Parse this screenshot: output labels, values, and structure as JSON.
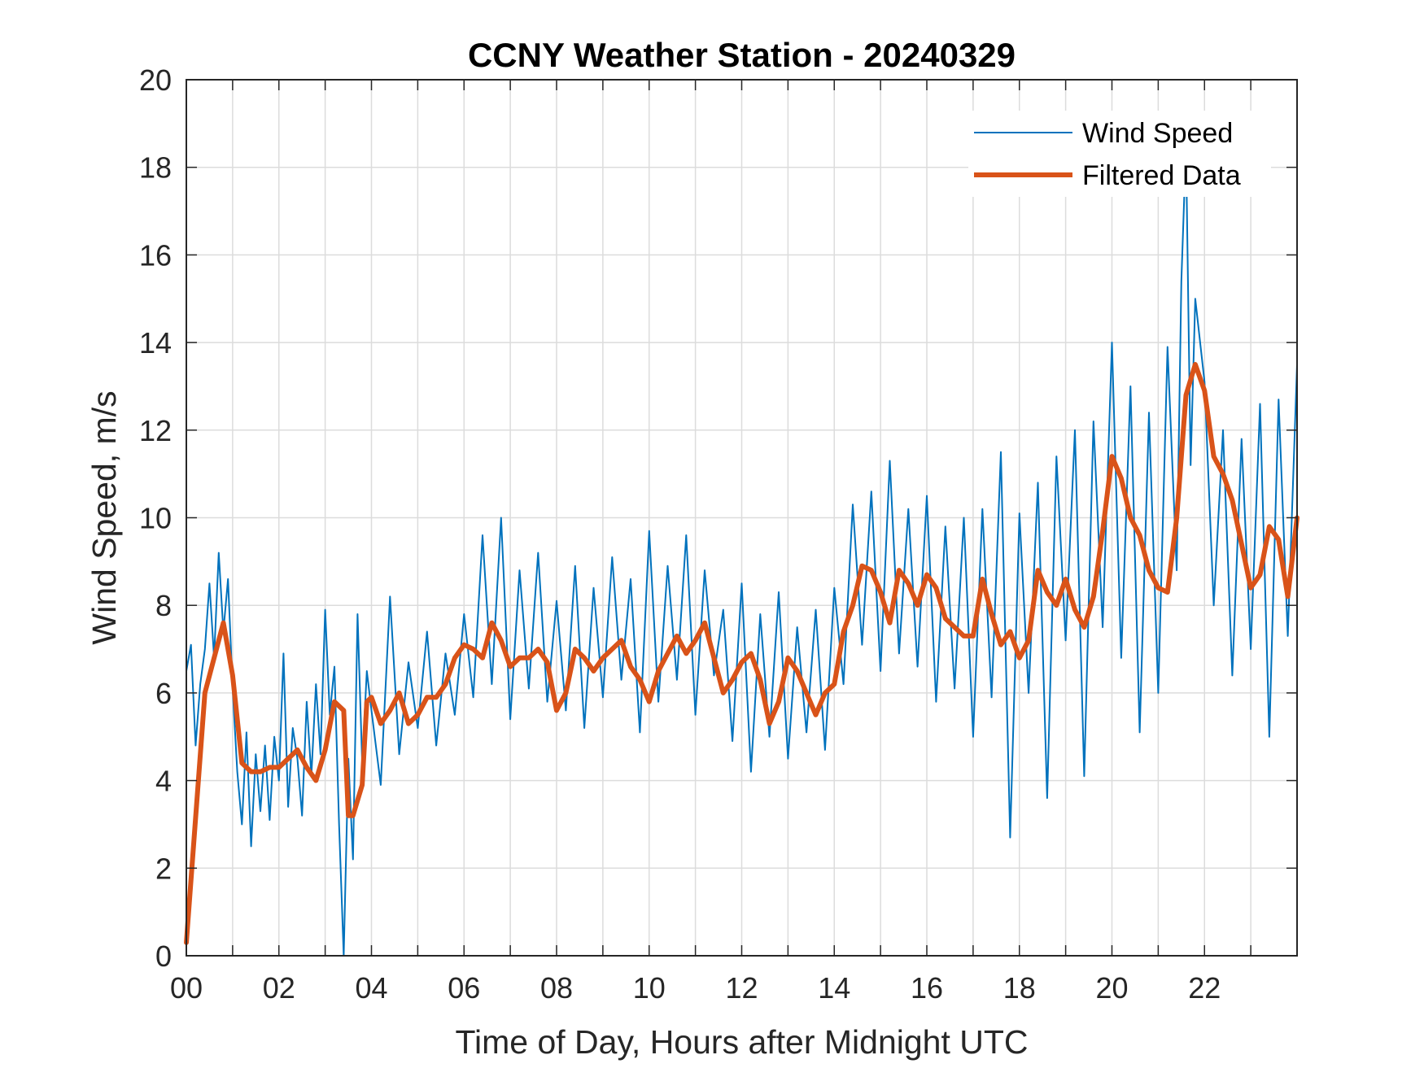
{
  "chart_data": {
    "type": "line",
    "title": "CCNY Weather Station - 20240329",
    "xlabel": "Time of Day, Hours after Midnight UTC",
    "ylabel": "Wind Speed, m/s",
    "xlim": [
      0,
      24
    ],
    "ylim": [
      0,
      20
    ],
    "x_ticks": [
      0,
      2,
      4,
      6,
      8,
      10,
      12,
      14,
      16,
      18,
      20,
      22
    ],
    "x_tick_labels": [
      "00",
      "02",
      "04",
      "06",
      "08",
      "10",
      "12",
      "14",
      "16",
      "18",
      "20",
      "22"
    ],
    "y_ticks": [
      0,
      2,
      4,
      6,
      8,
      10,
      12,
      14,
      16,
      18,
      20
    ],
    "y_tick_labels": [
      "0",
      "2",
      "4",
      "6",
      "8",
      "10",
      "12",
      "14",
      "16",
      "18",
      "20"
    ],
    "minor_x_grid_step": 1,
    "grid": true,
    "legend_position": "top-right",
    "series": [
      {
        "name": "Wind Speed",
        "color": "#0072BD",
        "style": "thin",
        "x": [
          0,
          0.1,
          0.2,
          0.3,
          0.4,
          0.5,
          0.6,
          0.7,
          0.8,
          0.9,
          1.0,
          1.1,
          1.2,
          1.3,
          1.4,
          1.5,
          1.6,
          1.7,
          1.8,
          1.9,
          2.0,
          2.1,
          2.2,
          2.3,
          2.4,
          2.5,
          2.6,
          2.7,
          2.8,
          2.9,
          3.0,
          3.1,
          3.2,
          3.3,
          3.4,
          3.5,
          3.6,
          3.7,
          3.8,
          3.9,
          4.0,
          4.2,
          4.4,
          4.6,
          4.8,
          5.0,
          5.2,
          5.4,
          5.6,
          5.8,
          6.0,
          6.2,
          6.4,
          6.6,
          6.8,
          7.0,
          7.2,
          7.4,
          7.6,
          7.8,
          8.0,
          8.2,
          8.4,
          8.6,
          8.8,
          9.0,
          9.2,
          9.4,
          9.6,
          9.8,
          10.0,
          10.2,
          10.4,
          10.6,
          10.8,
          11.0,
          11.2,
          11.4,
          11.6,
          11.8,
          12.0,
          12.2,
          12.4,
          12.6,
          12.8,
          13.0,
          13.2,
          13.4,
          13.6,
          13.8,
          14.0,
          14.2,
          14.4,
          14.6,
          14.8,
          15.0,
          15.2,
          15.4,
          15.6,
          15.8,
          16.0,
          16.2,
          16.4,
          16.6,
          16.8,
          17.0,
          17.2,
          17.4,
          17.6,
          17.8,
          18.0,
          18.2,
          18.4,
          18.6,
          18.8,
          19.0,
          19.2,
          19.4,
          19.6,
          19.8,
          20.0,
          20.2,
          20.4,
          20.6,
          20.8,
          21.0,
          21.2,
          21.4,
          21.5,
          21.6,
          21.7,
          21.8,
          22.0,
          22.2,
          22.4,
          22.6,
          22.8,
          23.0,
          23.2,
          23.4,
          23.6,
          23.8,
          24.0
        ],
        "values": [
          6.5,
          7.1,
          4.8,
          6.2,
          7.0,
          8.5,
          6.8,
          9.2,
          7.4,
          8.6,
          6.1,
          4.2,
          3.0,
          5.1,
          2.5,
          4.6,
          3.3,
          4.8,
          3.1,
          5.0,
          4.0,
          6.9,
          3.4,
          5.2,
          4.5,
          3.2,
          5.8,
          4.1,
          6.2,
          4.6,
          7.9,
          5.5,
          6.6,
          3.0,
          0.0,
          4.5,
          2.2,
          7.8,
          4.4,
          6.5,
          5.6,
          3.9,
          8.2,
          4.6,
          6.7,
          5.2,
          7.4,
          4.8,
          6.9,
          5.5,
          7.8,
          5.9,
          9.6,
          6.2,
          10.0,
          5.4,
          8.8,
          6.1,
          9.2,
          5.8,
          8.1,
          5.6,
          8.9,
          5.2,
          8.4,
          5.9,
          9.1,
          6.3,
          8.6,
          5.1,
          9.7,
          5.8,
          8.9,
          6.3,
          9.6,
          5.5,
          8.8,
          6.4,
          7.9,
          4.9,
          8.5,
          4.2,
          7.8,
          5.0,
          8.3,
          4.5,
          7.5,
          5.1,
          7.9,
          4.7,
          8.4,
          6.2,
          10.3,
          7.1,
          10.6,
          6.5,
          11.3,
          6.9,
          10.2,
          6.6,
          10.5,
          5.8,
          9.8,
          6.1,
          10.0,
          5.0,
          10.2,
          5.9,
          11.5,
          2.7,
          10.1,
          6.0,
          10.8,
          3.6,
          11.4,
          7.2,
          12.0,
          4.1,
          12.2,
          7.5,
          14.0,
          6.8,
          13.0,
          5.1,
          12.4,
          6.0,
          13.9,
          8.8,
          15.4,
          18.5,
          11.2,
          15.0,
          13.1,
          8.0,
          12.0,
          6.4,
          11.8,
          7.0,
          12.6,
          5.0,
          12.7,
          7.3,
          13.5
        ]
      },
      {
        "name": "Filtered Data",
        "color": "#D95319",
        "style": "thick",
        "x": [
          0,
          0.4,
          0.8,
          1.0,
          1.2,
          1.4,
          1.6,
          1.8,
          2.0,
          2.2,
          2.4,
          2.6,
          2.8,
          3.0,
          3.2,
          3.4,
          3.5,
          3.6,
          3.8,
          3.9,
          4.0,
          4.2,
          4.4,
          4.6,
          4.8,
          5.0,
          5.2,
          5.4,
          5.6,
          5.8,
          6.0,
          6.2,
          6.4,
          6.6,
          6.8,
          7.0,
          7.2,
          7.4,
          7.6,
          7.8,
          8.0,
          8.2,
          8.4,
          8.6,
          8.8,
          9.0,
          9.2,
          9.4,
          9.6,
          9.8,
          10.0,
          10.2,
          10.4,
          10.6,
          10.8,
          11.0,
          11.2,
          11.4,
          11.6,
          11.8,
          12.0,
          12.2,
          12.4,
          12.6,
          12.8,
          13.0,
          13.2,
          13.4,
          13.6,
          13.8,
          14.0,
          14.2,
          14.4,
          14.6,
          14.8,
          15.0,
          15.2,
          15.4,
          15.6,
          15.8,
          16.0,
          16.2,
          16.4,
          16.6,
          16.8,
          17.0,
          17.2,
          17.4,
          17.6,
          17.8,
          18.0,
          18.2,
          18.4,
          18.6,
          18.8,
          19.0,
          19.2,
          19.4,
          19.6,
          19.8,
          20.0,
          20.2,
          20.4,
          20.6,
          20.8,
          21.0,
          21.2,
          21.4,
          21.6,
          21.8,
          22.0,
          22.2,
          22.4,
          22.6,
          22.8,
          23.0,
          23.2,
          23.4,
          23.6,
          23.8,
          24.0
        ],
        "values": [
          0.3,
          6.0,
          7.6,
          6.4,
          4.4,
          4.2,
          4.2,
          4.3,
          4.3,
          4.5,
          4.7,
          4.3,
          4.0,
          4.7,
          5.8,
          5.6,
          3.2,
          3.2,
          3.9,
          5.8,
          5.9,
          5.3,
          5.6,
          6.0,
          5.3,
          5.5,
          5.9,
          5.9,
          6.2,
          6.8,
          7.1,
          7.0,
          6.8,
          7.6,
          7.2,
          6.6,
          6.8,
          6.8,
          7.0,
          6.7,
          5.6,
          6.0,
          7.0,
          6.8,
          6.5,
          6.8,
          7.0,
          7.2,
          6.6,
          6.3,
          5.8,
          6.5,
          6.9,
          7.3,
          6.9,
          7.2,
          7.6,
          6.8,
          6.0,
          6.3,
          6.7,
          6.9,
          6.3,
          5.3,
          5.8,
          6.8,
          6.5,
          6.0,
          5.5,
          6.0,
          6.2,
          7.4,
          8.0,
          8.9,
          8.8,
          8.3,
          7.6,
          8.8,
          8.5,
          8.0,
          8.7,
          8.4,
          7.7,
          7.5,
          7.3,
          7.3,
          8.6,
          7.8,
          7.1,
          7.4,
          6.8,
          7.2,
          8.8,
          8.3,
          8.0,
          8.6,
          7.9,
          7.5,
          8.2,
          9.7,
          11.4,
          10.9,
          10.0,
          9.6,
          8.8,
          8.4,
          8.3,
          10.0,
          12.8,
          13.5,
          12.9,
          11.4,
          11.0,
          10.4,
          9.4,
          8.4,
          8.7,
          9.8,
          9.5,
          8.2,
          10.0
        ]
      }
    ]
  }
}
